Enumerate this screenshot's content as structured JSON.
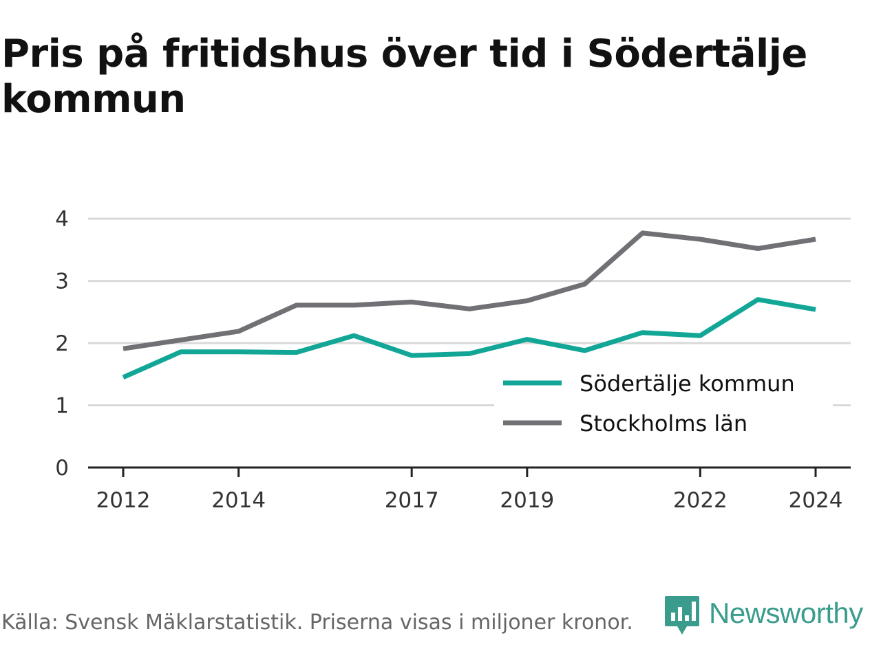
{
  "title": "Pris på fritidshus över tid i Södertälje kommun",
  "footer": {
    "source": "Källa: Svensk Mäklarstatistik. Priserna visas i miljoner kronor.",
    "brand": "Newsworthy",
    "brand_icon": "bar-chart-speech-bubble-icon"
  },
  "colors": {
    "sodertalje": "#12a696",
    "stockholm": "#707075",
    "grid": "#d9d9d9",
    "axis": "#222222",
    "brand": "#3a9c8c"
  },
  "chart_data": {
    "type": "line",
    "title": "Pris på fritidshus över tid i Södertälje kommun",
    "xlabel": "",
    "ylabel": "",
    "x": [
      2012,
      2013,
      2014,
      2015,
      2016,
      2017,
      2018,
      2019,
      2020,
      2021,
      2022,
      2023,
      2024
    ],
    "x_ticks": [
      "2012",
      "2014",
      "2017",
      "2019",
      "2022",
      "2024"
    ],
    "y_ticks": [
      "0",
      "1",
      "2",
      "3",
      "4"
    ],
    "ylim": [
      0,
      4.2
    ],
    "grid": true,
    "legend_position": "bottom-right",
    "series": [
      {
        "name": "Södertälje kommun",
        "color": "#12a696",
        "values": [
          1.45,
          1.86,
          1.86,
          1.85,
          2.12,
          1.8,
          1.83,
          2.06,
          1.88,
          2.17,
          2.12,
          2.7,
          2.54
        ]
      },
      {
        "name": "Stockholms län",
        "color": "#707075",
        "values": [
          1.91,
          2.05,
          2.19,
          2.61,
          2.61,
          2.66,
          2.55,
          2.68,
          2.95,
          3.77,
          3.67,
          3.52,
          3.67
        ]
      }
    ]
  }
}
